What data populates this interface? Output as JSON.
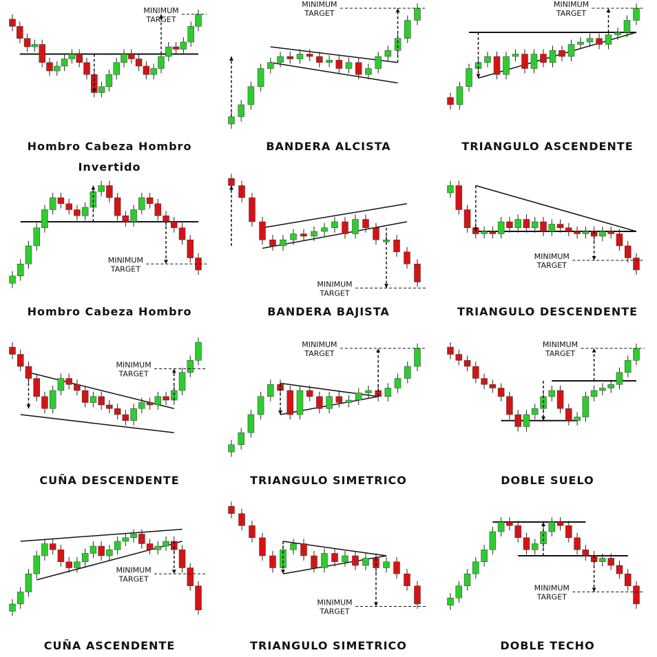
{
  "colors": {
    "bullish": "#2ecc2e",
    "bearish": "#d41414",
    "line": "#111111"
  },
  "target_label": {
    "line1": "MINIMUM",
    "line2": "TARGET"
  },
  "patterns": [
    {
      "title": "Hombro Cabeza Hombro",
      "title2": "Invertido",
      "closes": [
        85,
        75,
        68,
        70,
        55,
        48,
        52,
        58,
        62,
        55,
        45,
        30,
        35,
        45,
        55,
        62,
        58,
        52,
        45,
        50,
        60,
        68,
        66,
        72,
        85,
        95
      ]
    },
    {
      "title": "BANDERA ALCISTA",
      "closes": [
        10,
        20,
        35,
        50,
        55,
        60,
        58,
        62,
        60,
        55,
        57,
        50,
        55,
        45,
        50,
        60,
        65,
        75,
        90,
        100
      ]
    },
    {
      "title": "TRIANGULO ASCENDENTE",
      "closes": [
        20,
        35,
        50,
        55,
        60,
        45,
        60,
        62,
        50,
        62,
        55,
        65,
        60,
        70,
        72,
        75,
        70,
        78,
        80,
        90,
        100
      ]
    },
    {
      "title": "Hombro Cabeza Hombro",
      "closes": [
        15,
        25,
        40,
        55,
        70,
        80,
        75,
        70,
        65,
        72,
        85,
        90,
        80,
        65,
        60,
        70,
        80,
        75,
        65,
        60,
        55,
        45,
        30,
        20
      ]
    },
    {
      "title": "BANDERA BAJISTA",
      "closes": [
        90,
        80,
        60,
        45,
        40,
        45,
        50,
        48,
        52,
        55,
        60,
        50,
        62,
        55,
        45,
        45,
        35,
        25,
        10
      ]
    },
    {
      "title": "TRIANGULO DESCENDENTE",
      "closes": [
        90,
        70,
        55,
        50,
        52,
        50,
        60,
        55,
        62,
        55,
        60,
        52,
        58,
        55,
        52,
        50,
        52,
        48,
        52,
        50,
        40,
        30,
        20
      ]
    },
    {
      "title": "CUÑA DESCENDENTE",
      "closes": [
        90,
        80,
        70,
        55,
        45,
        60,
        70,
        65,
        60,
        50,
        55,
        48,
        45,
        40,
        35,
        45,
        50,
        48,
        55,
        52,
        60,
        75,
        85,
        100
      ]
    },
    {
      "title": "TRIANGULO SIMETRICO",
      "closes": [
        15,
        25,
        40,
        55,
        65,
        60,
        40,
        60,
        55,
        45,
        55,
        50,
        52,
        58,
        60,
        55,
        62,
        70,
        80,
        95
      ]
    },
    {
      "title": "DOBLE SUELO",
      "closes": [
        90,
        85,
        80,
        70,
        65,
        62,
        55,
        40,
        30,
        40,
        45,
        55,
        60,
        45,
        35,
        38,
        55,
        60,
        62,
        65,
        75,
        85,
        95
      ]
    },
    {
      "title": "CUÑA ASCENDENTE",
      "closes": [
        20,
        30,
        45,
        60,
        70,
        65,
        55,
        50,
        55,
        62,
        68,
        60,
        65,
        72,
        75,
        78,
        70,
        65,
        68,
        72,
        65,
        50,
        35,
        15
      ]
    },
    {
      "title": "TRIANGULO SIMETRICO",
      "closes": [
        95,
        85,
        75,
        60,
        50,
        65,
        70,
        60,
        50,
        62,
        55,
        60,
        52,
        58,
        50,
        55,
        45,
        35,
        20
      ]
    },
    {
      "title": "DOBLE TECHO",
      "closes": [
        25,
        35,
        45,
        55,
        65,
        80,
        88,
        85,
        75,
        65,
        70,
        80,
        88,
        85,
        75,
        65,
        60,
        55,
        58,
        52,
        45,
        35,
        20
      ]
    }
  ]
}
